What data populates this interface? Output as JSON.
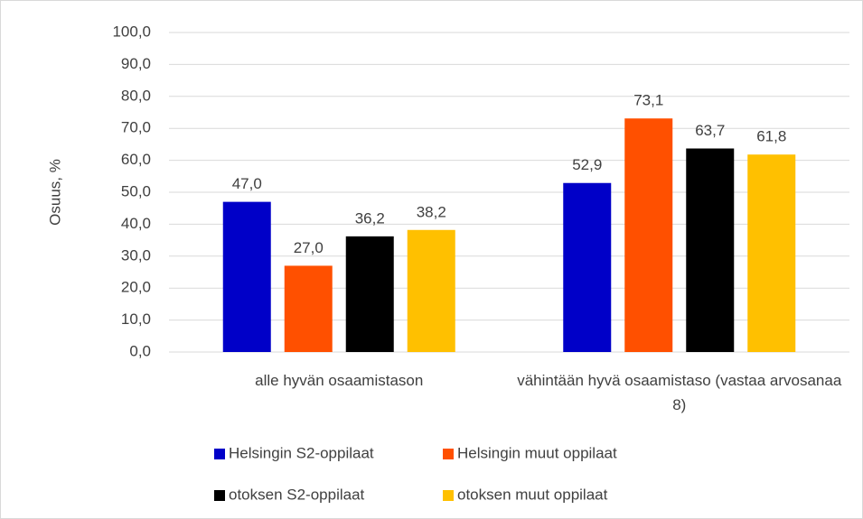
{
  "chart_data": {
    "type": "bar",
    "y_label": "Osuus, %",
    "categories": [
      "alle hyvän osaamistason",
      "vähintään hyvä osaamistaso (vastaa arvosanaa 8)"
    ],
    "series": [
      {
        "name": "Helsingin S2-oppilaat",
        "color": "#0000c8",
        "values": [
          47.0,
          52.9
        ],
        "value_labels": [
          "47,0",
          "52,9"
        ]
      },
      {
        "name": "Helsingin muut oppilaat",
        "color": "#ff5000",
        "values": [
          27.0,
          73.1
        ],
        "value_labels": [
          "27,0",
          "73,1"
        ]
      },
      {
        "name": "otoksen S2-oppilaat",
        "color": "#000000",
        "values": [
          36.2,
          63.7
        ],
        "value_labels": [
          "36,2",
          "63,7"
        ]
      },
      {
        "name": "otoksen muut oppilaat",
        "color": "#ffc000",
        "values": [
          38.2,
          61.8
        ],
        "value_labels": [
          "38,2",
          "61,8"
        ]
      }
    ],
    "ylim": [
      0,
      100
    ],
    "yticks": [
      {
        "value": 0,
        "label": "0,0"
      },
      {
        "value": 10,
        "label": "10,0"
      },
      {
        "value": 20,
        "label": "20,0"
      },
      {
        "value": 30,
        "label": "30,0"
      },
      {
        "value": 40,
        "label": "40,0"
      },
      {
        "value": 50,
        "label": "50,0"
      },
      {
        "value": 60,
        "label": "60,0"
      },
      {
        "value": 70,
        "label": "70,0"
      },
      {
        "value": 80,
        "label": "80,0"
      },
      {
        "value": 90,
        "label": "90,0"
      },
      {
        "value": 100,
        "label": "100,0"
      }
    ],
    "grid": true,
    "legend": "bottom"
  }
}
